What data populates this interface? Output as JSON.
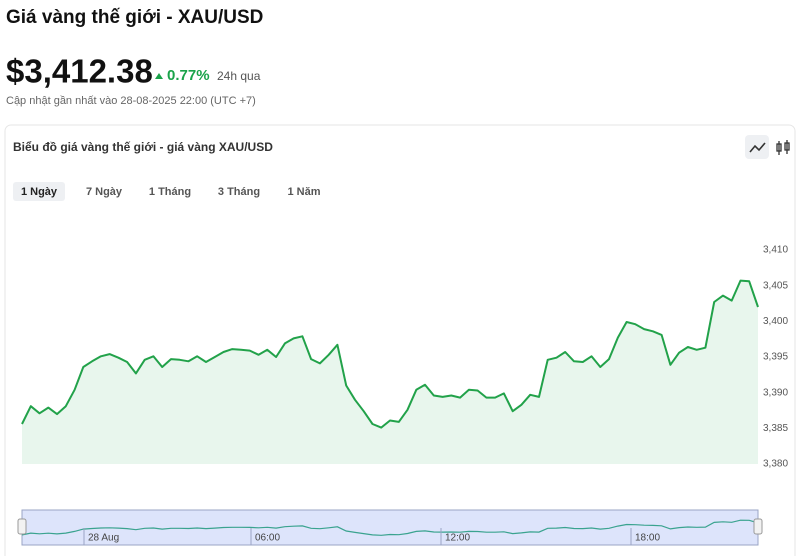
{
  "header": {
    "title": "Giá vàng thế giới - XAU/USD",
    "price": "$3,412.38",
    "change": "0.77%",
    "period": "24h qua",
    "updated": "Cập nhật gần nhất vào 28-08-2025 22:00 (UTC +7)"
  },
  "card": {
    "title": "Biểu đồ giá vàng thế giới - giá vàng XAU/USD",
    "tabs": [
      "1 Ngày",
      "7 Ngày",
      "1 Tháng",
      "3 Tháng",
      "1 Năm"
    ],
    "active_tab": 0
  },
  "chart_data": {
    "type": "line",
    "categories": [
      null,
      null,
      null,
      null,
      null,
      null,
      null,
      null,
      null,
      null,
      null,
      null,
      null,
      null,
      null,
      null,
      null,
      null,
      null,
      null,
      null,
      null,
      null,
      null,
      null,
      null,
      null,
      null,
      null,
      null,
      null,
      null,
      null,
      null,
      null,
      null,
      null,
      null,
      null,
      null,
      null,
      null,
      null,
      null,
      null,
      null,
      null,
      null,
      null,
      null,
      null,
      null,
      null,
      null,
      null,
      null,
      null,
      null,
      null,
      null,
      null,
      null,
      null,
      null,
      null,
      null,
      null,
      null,
      null,
      null,
      null,
      null,
      null,
      null,
      null,
      null,
      null,
      null,
      null,
      null,
      null,
      null,
      null,
      null,
      null
    ],
    "series": [
      {
        "color": "#22a24a",
        "values": [
          3385.6,
          3388.1,
          3387.1,
          3387.9,
          3387.0,
          3388.1,
          3390.4,
          3393.6,
          3394.4,
          3395.1,
          3395.4,
          3394.9,
          3394.3,
          3392.7,
          3394.6,
          3395.1,
          3393.6,
          3394.7,
          3394.6,
          3394.4,
          3395.1,
          3394.3,
          3395.0,
          3395.7,
          3396.1,
          3396.0,
          3395.9,
          3395.3,
          3396.0,
          3395.0,
          3396.9,
          3397.6,
          3397.9,
          3394.7,
          3394.1,
          3395.3,
          3396.7,
          3391.0,
          3389.0,
          3387.4,
          3385.6,
          3385.1,
          3386.1,
          3385.9,
          3387.6,
          3390.4,
          3391.1,
          3389.6,
          3389.4,
          3389.6,
          3389.3,
          3390.4,
          3390.3,
          3389.3,
          3389.3,
          3389.9,
          3387.4,
          3388.3,
          3389.7,
          3389.4,
          3394.6,
          3394.9,
          3395.7,
          3394.4,
          3394.3,
          3395.1,
          3393.6,
          3394.7,
          3397.7,
          3399.9,
          3399.6,
          3398.9,
          3398.6,
          3398.1,
          3393.9,
          3395.6,
          3396.4,
          3396.0,
          3396.3,
          3402.7,
          3403.6,
          3402.9,
          3405.7,
          3405.6,
          3402.0
        ]
      }
    ],
    "ylim": [
      3380,
      3417
    ],
    "yticks": [
      {
        "value": 3380,
        "label": "3,380"
      },
      {
        "value": 3385,
        "label": "3,385"
      },
      {
        "value": 3390,
        "label": "3,390"
      },
      {
        "value": 3395,
        "label": "3,395"
      },
      {
        "value": 3400,
        "label": "3,400"
      },
      {
        "value": 3405,
        "label": "3,405"
      },
      {
        "value": 3410,
        "label": "3,410"
      }
    ],
    "grid": false,
    "area": true
  },
  "navigator": {
    "labels": [
      "28 Aug",
      "06:00",
      "12:00",
      "18:00"
    ]
  }
}
